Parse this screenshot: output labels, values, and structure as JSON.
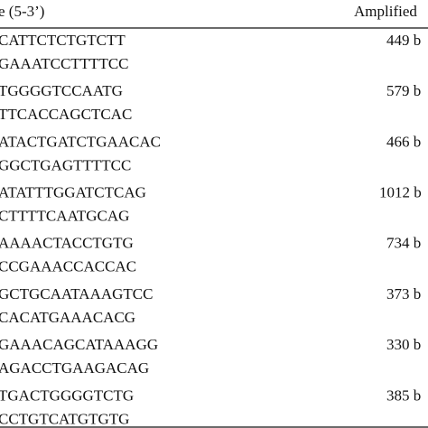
{
  "table": {
    "header": [
      "e (5-3’)",
      "Amplified"
    ],
    "rows": [
      [
        "CATTCTCTGTCTT",
        "GAAATCCTTTTCC",
        "449 b"
      ],
      [
        "TGGGGTCCAATG",
        "TTCACCAGCTCAC",
        "579 b"
      ],
      [
        "ATACTGATCTGAACAC",
        "GGCTGAGTTTTCC",
        "466 b"
      ],
      [
        "ATATTTGGATCTCAG",
        "CTTTTCAATGCAG",
        "1012 b"
      ],
      [
        "AAAACTACCTGTG",
        "CCGAAACCACCAC",
        "734 b"
      ],
      [
        "GCTGCAATAAAGTCC",
        "CACATGAAACACG",
        "373 b"
      ],
      [
        "GAAACAGCATAAAGG",
        "AGACCTGAAGACAG",
        "330 b"
      ],
      [
        "TGACTGGGGTCTG",
        "CCTGTCATGTGTG",
        "385 b"
      ]
    ]
  }
}
